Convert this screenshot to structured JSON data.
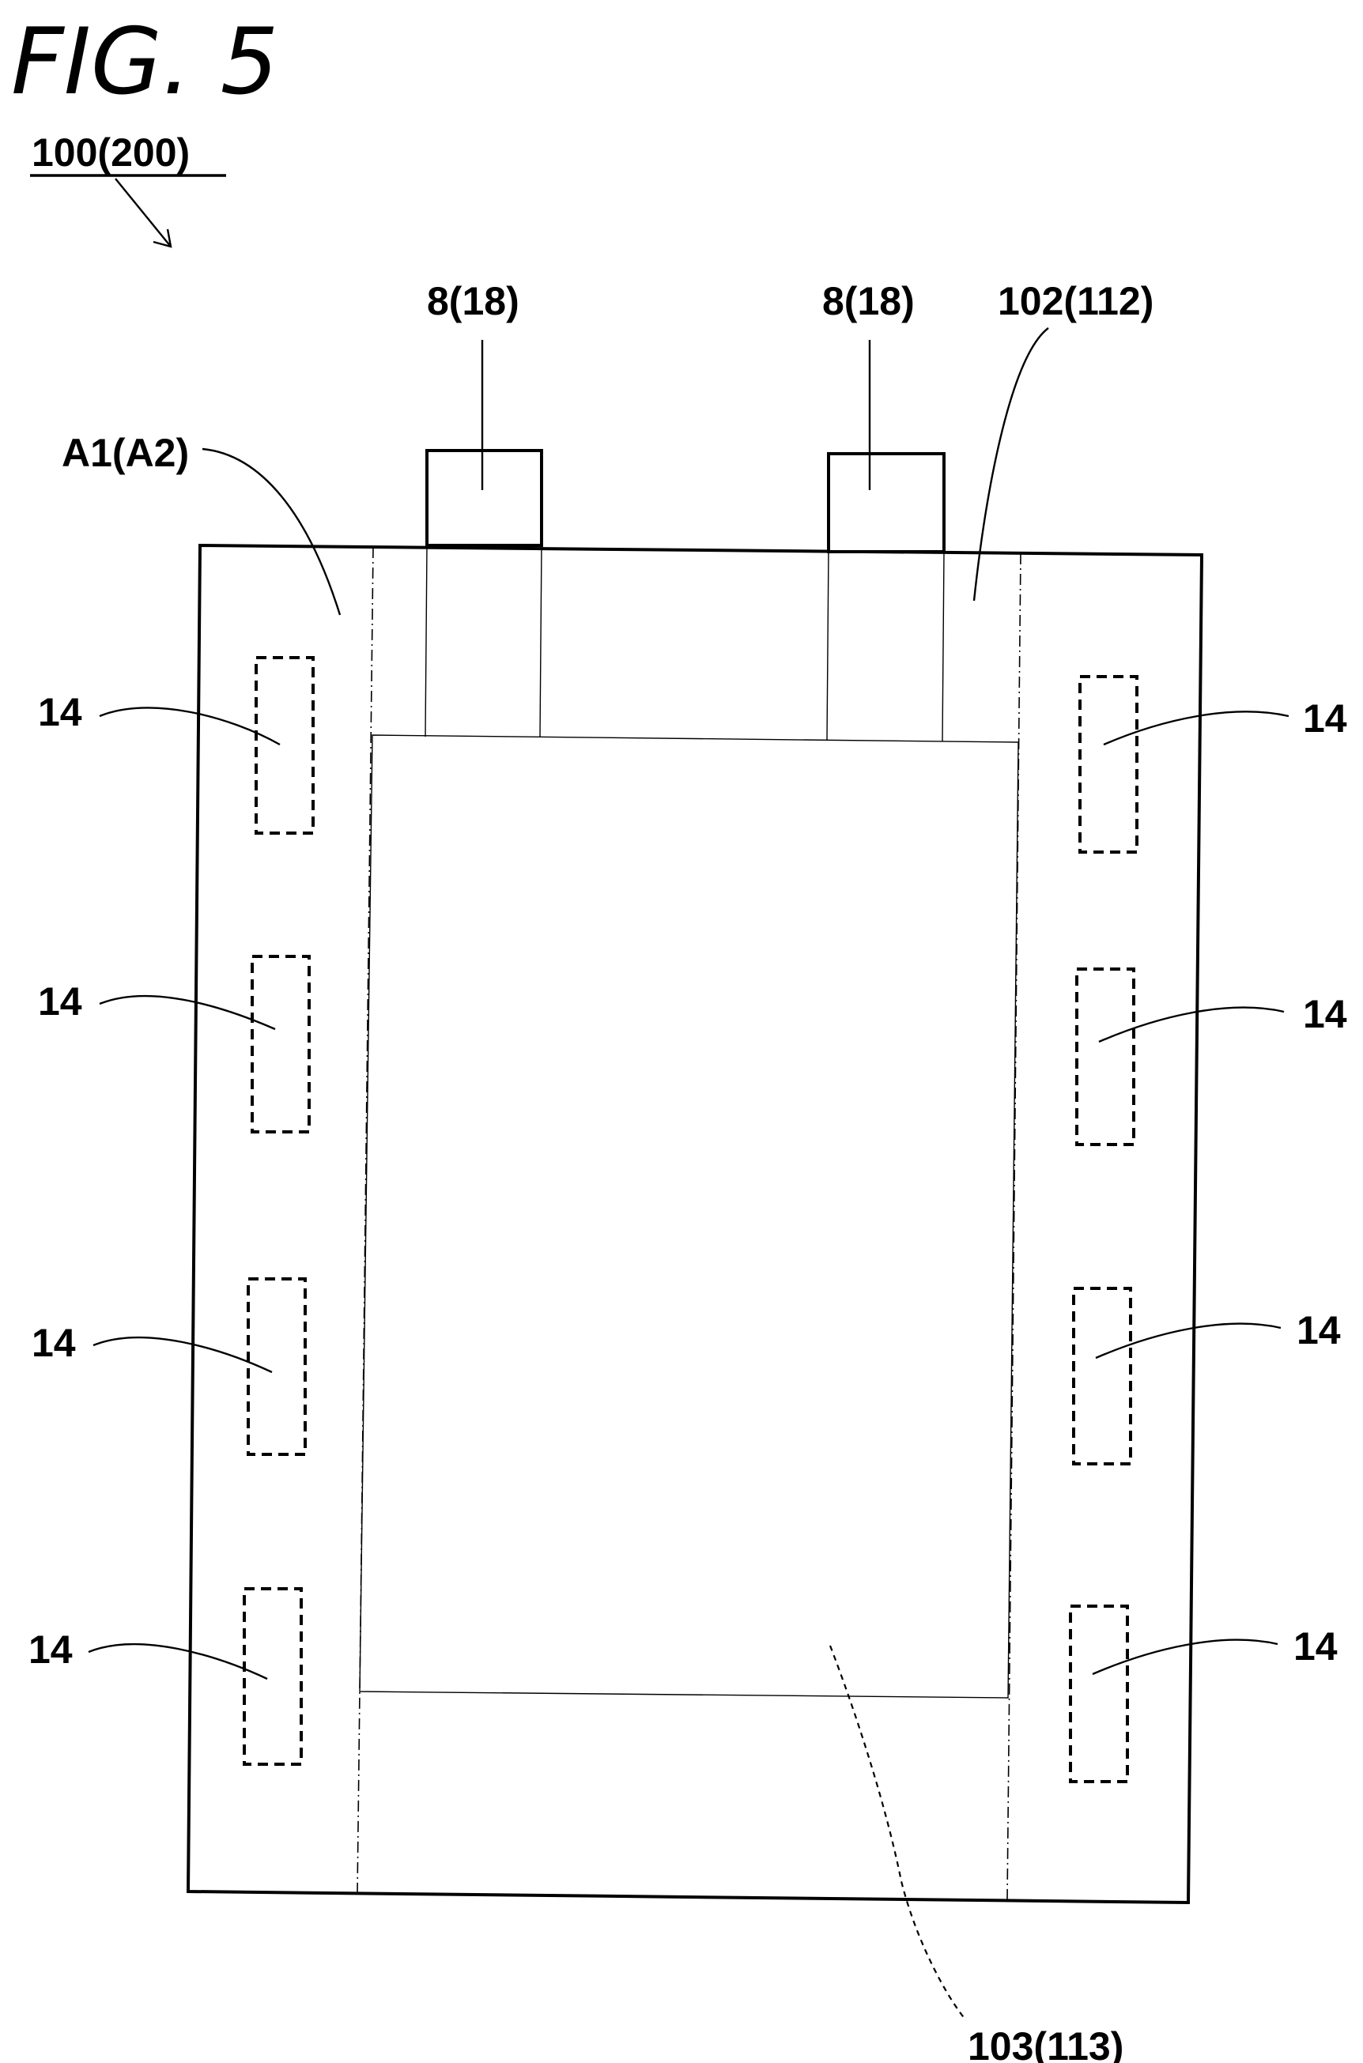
{
  "figure": {
    "title": "FIG. 5",
    "assembly_label": "100(200)"
  },
  "labels": {
    "tab_left": "8(18)",
    "tab_right": "8(18)",
    "seal_region": "102(112)",
    "outer_region": "A1(A2)",
    "inner_region": "103(113)",
    "marks": [
      "14",
      "14",
      "14",
      "14",
      "14",
      "14",
      "14",
      "14"
    ]
  }
}
